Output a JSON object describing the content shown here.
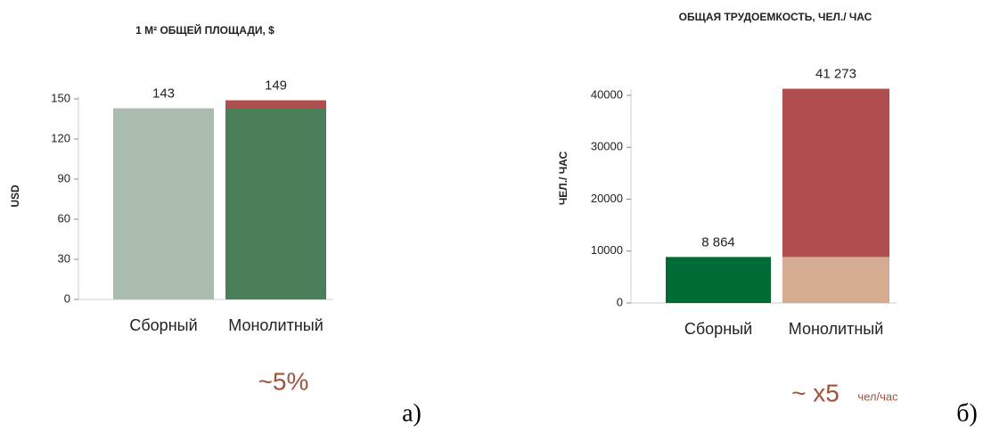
{
  "chart_data": [
    {
      "type": "stacked_bar",
      "title": "1 М² ОБЩЕЙ ПЛОЩАДИ, $",
      "y_label": "USD",
      "categories": [
        "Сборный",
        "Монолитный"
      ],
      "series": [
        {
          "values": [
            143,
            143
          ],
          "colors": [
            "#a9bcad",
            "#4a7f5a"
          ]
        },
        {
          "values": [
            null,
            6
          ],
          "color": "#b04e4e"
        }
      ],
      "totals": [
        143,
        149
      ],
      "ylim": [
        0,
        152
      ],
      "yticks": [
        0,
        30,
        60,
        90,
        120,
        150
      ],
      "annotation": "~5%",
      "caption": "а)"
    },
    {
      "type": "stacked_bar",
      "title": "ОБЩАЯ ТРУДОЕМКОСТЬ, ЧЕЛ./ ЧАС",
      "y_label": "ЧЕЛ./ ЧАС",
      "categories": [
        "Сборный",
        "Монолитный"
      ],
      "series": [
        {
          "values": [
            8864,
            8864
          ],
          "colors": [
            "#006b35",
            "#d4aa90"
          ]
        },
        {
          "values": [
            null,
            32409
          ],
          "color": "#b04e4e"
        }
      ],
      "totals": [
        8864,
        41273
      ],
      "total_labels": [
        "8 864",
        "41 273"
      ],
      "ylim": [
        0,
        41200
      ],
      "yticks": [
        0,
        10000,
        20000,
        30000,
        40000
      ],
      "annotation": "~ x5",
      "annotation_unit": "чел/час",
      "caption": "б)"
    }
  ]
}
